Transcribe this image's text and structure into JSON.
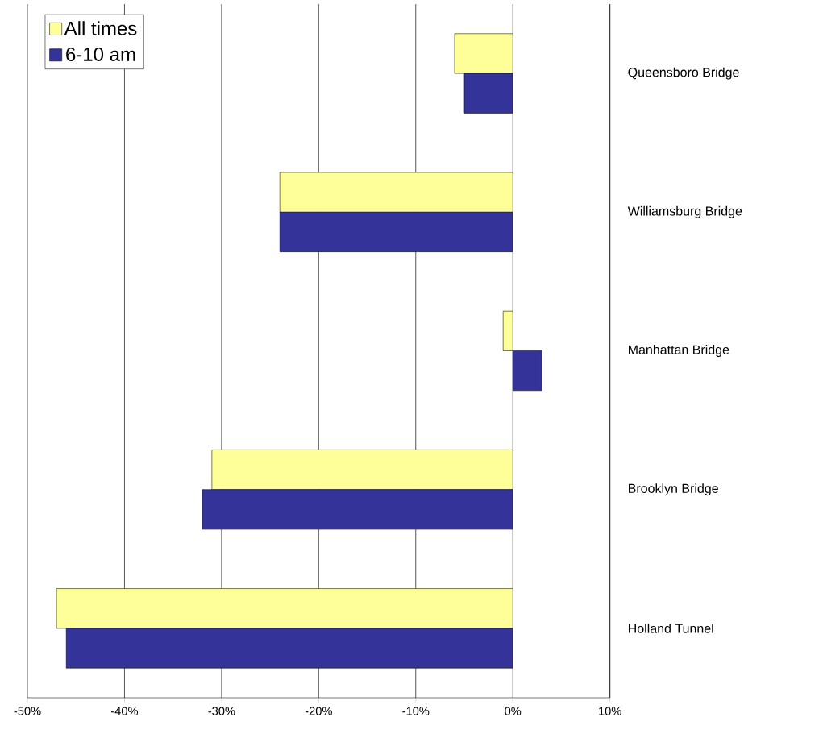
{
  "chart_data": {
    "type": "bar",
    "orientation": "horizontal",
    "categories": [
      "Queensboro Bridge",
      "Williamsburg Bridge",
      "Manhattan Bridge",
      "Brooklyn Bridge",
      "Holland Tunnel"
    ],
    "series": [
      {
        "name": "All times",
        "color": "#ffff99",
        "values": [
          -6,
          -24,
          -1,
          -31,
          -47
        ]
      },
      {
        "name": "6-10 am",
        "color": "#333399",
        "values": [
          -5,
          -24,
          3,
          -32,
          -46
        ]
      }
    ],
    "xlim": [
      -50,
      10
    ],
    "xticks": [
      {
        "value": -50,
        "label": "-50%"
      },
      {
        "value": -40,
        "label": "-40%"
      },
      {
        "value": -30,
        "label": "-30%"
      },
      {
        "value": -20,
        "label": "-20%"
      },
      {
        "value": -10,
        "label": "-10%"
      },
      {
        "value": 0,
        "label": "0%"
      },
      {
        "value": 10,
        "label": "10%"
      }
    ],
    "grid": "x",
    "legend": "top left"
  }
}
